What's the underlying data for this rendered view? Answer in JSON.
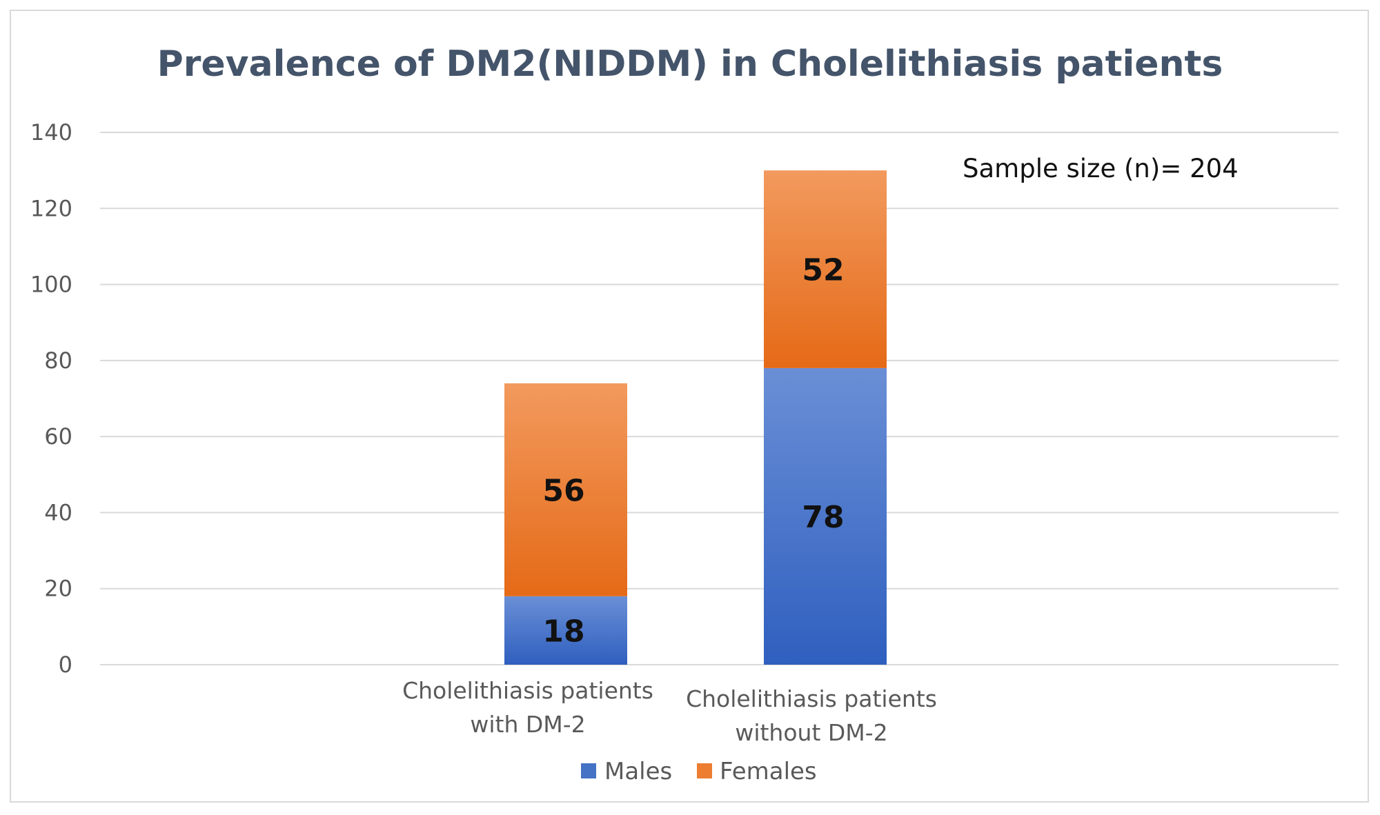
{
  "chart_data": {
    "type": "bar",
    "stacked": true,
    "title": "Prevalence of DM2(NIDDM) in Cholelithiasis patients",
    "categories": [
      [
        "Cholelithiasis patients",
        "with DM-2"
      ],
      [
        "Cholelithiasis patients",
        "without DM-2"
      ]
    ],
    "series": [
      {
        "name": "Males",
        "values": [
          18,
          78
        ],
        "color": "#4472c4"
      },
      {
        "name": "Females",
        "values": [
          56,
          52
        ],
        "color": "#ed7d31"
      }
    ],
    "y_ticks": [
      "0",
      "20",
      "40",
      "60",
      "80",
      "100",
      "120",
      "140"
    ],
    "ylim": [
      0,
      140
    ],
    "grid": true,
    "legend_position": "bottom",
    "annotation": "Sample size (n)= 204"
  }
}
